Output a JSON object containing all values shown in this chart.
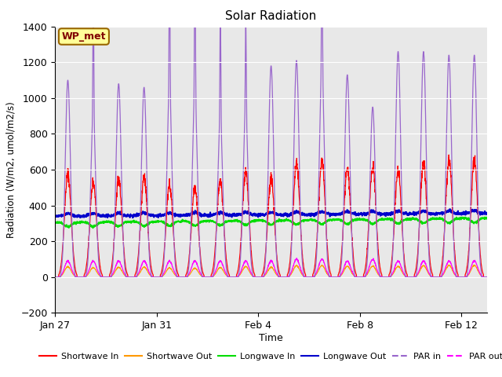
{
  "title": "Solar Radiation",
  "xlabel": "Time",
  "ylabel": "Radiation (W/m2, umol/m2/s)",
  "ylim": [
    -200,
    1400
  ],
  "yticks": [
    -200,
    0,
    200,
    400,
    600,
    800,
    1000,
    1200,
    1400
  ],
  "xlim_days": [
    0,
    17
  ],
  "xtick_labels": [
    "Jan 27",
    "Jan 31",
    "Feb 4",
    "Feb 8",
    "Feb 12"
  ],
  "xtick_positions": [
    0,
    4,
    8,
    12,
    16
  ],
  "bg_color": "#e8e8e8",
  "fig_color": "#ffffff",
  "annotation_text": "WP_met",
  "annotation_box_color": "#ffff99",
  "annotation_border_color": "#996600",
  "annotation_text_color": "#800000",
  "series_colors": {
    "shortwave_in": "#ff0000",
    "shortwave_out": "#ff9900",
    "longwave_in": "#00dd00",
    "longwave_out": "#0000cc",
    "par_in": "#9966cc",
    "par_out": "#ff00ff"
  },
  "legend_labels": [
    "Shortwave In",
    "Shortwave Out",
    "Longwave In",
    "Longwave Out",
    "PAR in",
    "PAR out"
  ],
  "num_days": 17,
  "samples_per_day": 144
}
